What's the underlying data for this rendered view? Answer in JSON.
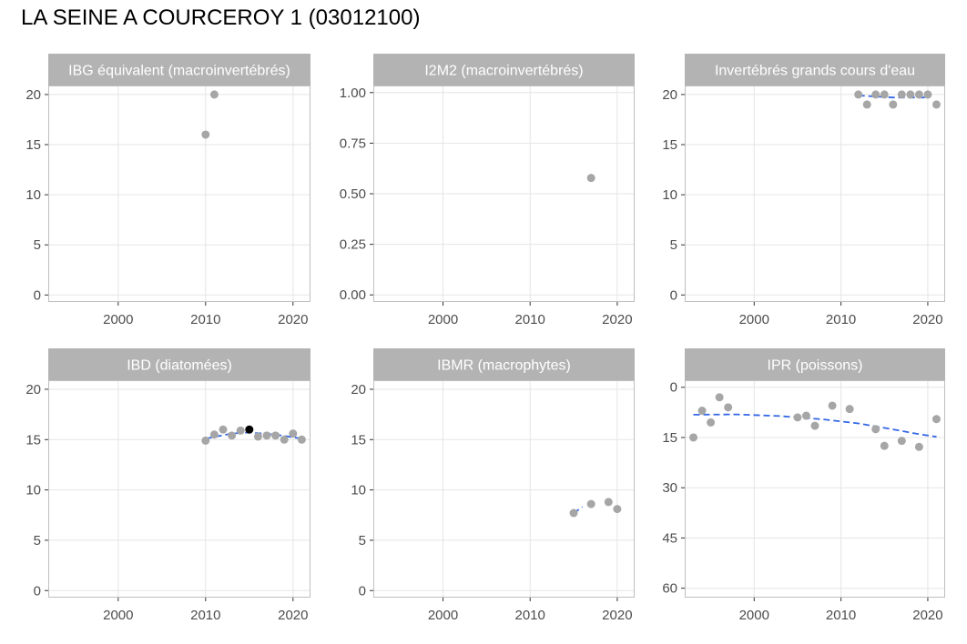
{
  "page": {
    "title": "LA SEINE A COURCEROY 1 (03012100)"
  },
  "colors": {
    "strip": "#b3b3b3",
    "panel_border": "#bfbfbf",
    "grid": "#e5e5e5",
    "point": "#a6a6a6",
    "highlight": "#000000",
    "trend": "#3366e6"
  },
  "chart_data": [
    {
      "type": "scatter",
      "title": "IBG équivalent (macroinvertébrés)",
      "xlabel": "",
      "ylabel": "",
      "xlim": [
        1992,
        2022
      ],
      "ylim": [
        -0.7,
        20.9
      ],
      "x_ticks": [
        2000,
        2010,
        2020
      ],
      "x_tick_labels": [
        "2000",
        "2010",
        "2020"
      ],
      "y_ticks": [
        0,
        5,
        10,
        15,
        20
      ],
      "y_tick_labels": [
        "0",
        "5",
        "10",
        "15",
        "20"
      ],
      "y_reversed": false,
      "grid": true,
      "points": [
        {
          "x": 2010,
          "y": 16
        },
        {
          "x": 2011,
          "y": 20
        }
      ],
      "highlight": [],
      "trend": []
    },
    {
      "type": "scatter",
      "title": "I2M2 (macroinvertébrés)",
      "xlabel": "",
      "ylabel": "",
      "xlim": [
        1992,
        2022
      ],
      "ylim": [
        -0.035,
        1.035
      ],
      "x_ticks": [
        2000,
        2010,
        2020
      ],
      "x_tick_labels": [
        "2000",
        "2010",
        "2020"
      ],
      "y_ticks": [
        0,
        0.25,
        0.5,
        0.75,
        1
      ],
      "y_tick_labels": [
        "0.00",
        "0.25",
        "0.50",
        "0.75",
        "1.00"
      ],
      "y_reversed": false,
      "grid": true,
      "points": [
        {
          "x": 2017,
          "y": 0.578
        }
      ],
      "highlight": [],
      "trend": []
    },
    {
      "type": "scatter",
      "title": "Invertébrés grands cours d'eau",
      "xlabel": "",
      "ylabel": "",
      "xlim": [
        1992,
        2022
      ],
      "ylim": [
        -0.7,
        20.9
      ],
      "x_ticks": [
        2000,
        2010,
        2020
      ],
      "x_tick_labels": [
        "2000",
        "2010",
        "2020"
      ],
      "y_ticks": [
        0,
        5,
        10,
        15,
        20
      ],
      "y_tick_labels": [
        "0",
        "5",
        "10",
        "15",
        "20"
      ],
      "y_reversed": false,
      "grid": true,
      "points": [
        {
          "x": 2012,
          "y": 20
        },
        {
          "x": 2013,
          "y": 19
        },
        {
          "x": 2014,
          "y": 20
        },
        {
          "x": 2015,
          "y": 20
        },
        {
          "x": 2016,
          "y": 19
        },
        {
          "x": 2017,
          "y": 20
        },
        {
          "x": 2018,
          "y": 20
        },
        {
          "x": 2019,
          "y": 20
        },
        {
          "x": 2020,
          "y": 20
        },
        {
          "x": 2021,
          "y": 19
        }
      ],
      "highlight": [],
      "trend": [
        {
          "x": 2012,
          "y": 19.9
        },
        {
          "x": 2016,
          "y": 19.7
        },
        {
          "x": 2020,
          "y": 19.7
        }
      ]
    },
    {
      "type": "scatter",
      "title": "IBD (diatomées)",
      "xlabel": "",
      "ylabel": "",
      "xlim": [
        1992,
        2022
      ],
      "ylim": [
        -0.7,
        20.9
      ],
      "x_ticks": [
        2000,
        2010,
        2020
      ],
      "x_tick_labels": [
        "2000",
        "2010",
        "2020"
      ],
      "y_ticks": [
        0,
        5,
        10,
        15,
        20
      ],
      "y_tick_labels": [
        "0",
        "5",
        "10",
        "15",
        "20"
      ],
      "y_reversed": false,
      "grid": true,
      "points": [
        {
          "x": 2010,
          "y": 14.9
        },
        {
          "x": 2011,
          "y": 15.5
        },
        {
          "x": 2012,
          "y": 16
        },
        {
          "x": 2013,
          "y": 15.4
        },
        {
          "x": 2014,
          "y": 15.9
        },
        {
          "x": 2016,
          "y": 15.3
        },
        {
          "x": 2017,
          "y": 15.4
        },
        {
          "x": 2018,
          "y": 15.4
        },
        {
          "x": 2019,
          "y": 15
        },
        {
          "x": 2020,
          "y": 15.6
        },
        {
          "x": 2021,
          "y": 15
        }
      ],
      "highlight": [
        {
          "x": 2015,
          "y": 16
        }
      ],
      "trend": [
        {
          "x": 2010,
          "y": 15.1
        },
        {
          "x": 2013,
          "y": 15.6
        },
        {
          "x": 2015,
          "y": 15.7
        },
        {
          "x": 2018,
          "y": 15.5
        },
        {
          "x": 2021,
          "y": 15.1
        }
      ]
    },
    {
      "type": "scatter",
      "title": "IBMR (macrophytes)",
      "xlabel": "",
      "ylabel": "",
      "xlim": [
        1992,
        2022
      ],
      "ylim": [
        -0.7,
        20.9
      ],
      "x_ticks": [
        2000,
        2010,
        2020
      ],
      "x_tick_labels": [
        "2000",
        "2010",
        "2020"
      ],
      "y_ticks": [
        0,
        5,
        10,
        15,
        20
      ],
      "y_tick_labels": [
        "0",
        "5",
        "10",
        "15",
        "20"
      ],
      "y_reversed": false,
      "grid": true,
      "points": [
        {
          "x": 2015,
          "y": 7.7
        },
        {
          "x": 2017,
          "y": 8.6
        },
        {
          "x": 2019,
          "y": 8.8
        },
        {
          "x": 2020,
          "y": 8.1
        }
      ],
      "highlight": [],
      "trend": [
        {
          "x": 2015,
          "y": 7.7
        },
        {
          "x": 2016,
          "y": 8.3
        }
      ]
    },
    {
      "type": "scatter",
      "title": "IPR (poissons)",
      "xlabel": "",
      "ylabel": "",
      "xlim": [
        1992,
        2022
      ],
      "ylim": [
        62.8,
        -2.1
      ],
      "x_ticks": [
        2000,
        2010,
        2020
      ],
      "x_tick_labels": [
        "2000",
        "2010",
        "2020"
      ],
      "y_ticks": [
        0,
        15,
        30,
        45,
        60
      ],
      "y_tick_labels": [
        "0",
        "15",
        "30",
        "45",
        "60"
      ],
      "y_reversed": true,
      "grid": true,
      "points": [
        {
          "x": 1993,
          "y": 15
        },
        {
          "x": 1994,
          "y": 7
        },
        {
          "x": 1995,
          "y": 10.5
        },
        {
          "x": 1996,
          "y": 3
        },
        {
          "x": 1997,
          "y": 6
        },
        {
          "x": 2005,
          "y": 9
        },
        {
          "x": 2006,
          "y": 8.5
        },
        {
          "x": 2007,
          "y": 11.5
        },
        {
          "x": 2009,
          "y": 5.5
        },
        {
          "x": 2011,
          "y": 6.5
        },
        {
          "x": 2014,
          "y": 12.5
        },
        {
          "x": 2015,
          "y": 17.5
        },
        {
          "x": 2017,
          "y": 16
        },
        {
          "x": 2019,
          "y": 17.8
        },
        {
          "x": 2021,
          "y": 9.5
        }
      ],
      "highlight": [],
      "trend": [
        {
          "x": 1993,
          "y": 8.2
        },
        {
          "x": 1998,
          "y": 8.1
        },
        {
          "x": 2003,
          "y": 8.6
        },
        {
          "x": 2008,
          "y": 9.6
        },
        {
          "x": 2012,
          "y": 10.8
        },
        {
          "x": 2016,
          "y": 12.6
        },
        {
          "x": 2019,
          "y": 14
        },
        {
          "x": 2021,
          "y": 14.8
        }
      ]
    }
  ]
}
